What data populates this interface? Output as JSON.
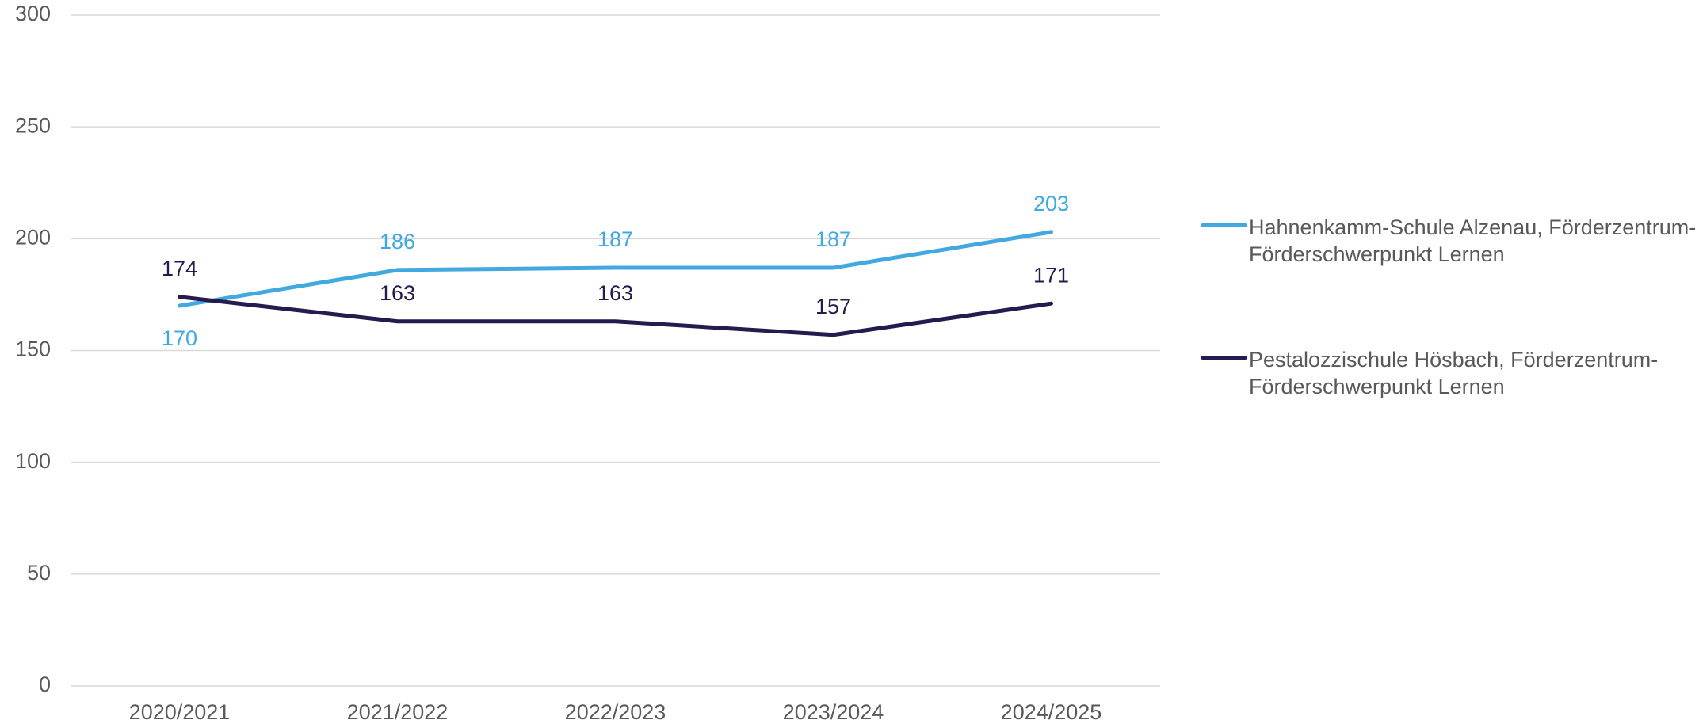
{
  "chart_data": {
    "type": "line",
    "categories": [
      "2020/2021",
      "2021/2022",
      "2022/2023",
      "2023/2024",
      "2024/2025"
    ],
    "series": [
      {
        "name": "Hahnenkamm-Schule Alzenau, Förderzentrum-Förderschwerpunkt Lernen",
        "color": "#41a8e0",
        "values": [
          170,
          186,
          187,
          187,
          203
        ]
      },
      {
        "name": "Pestalozzischule Hösbach, Förderzentrum-Förderschwerpunkt Lernen",
        "color": "#261a4f",
        "values": [
          174,
          163,
          163,
          157,
          171
        ]
      }
    ],
    "ylim": [
      0,
      300
    ],
    "yticks": [
      0,
      50,
      100,
      150,
      200,
      250,
      300
    ],
    "grid": true,
    "legend": "right"
  }
}
